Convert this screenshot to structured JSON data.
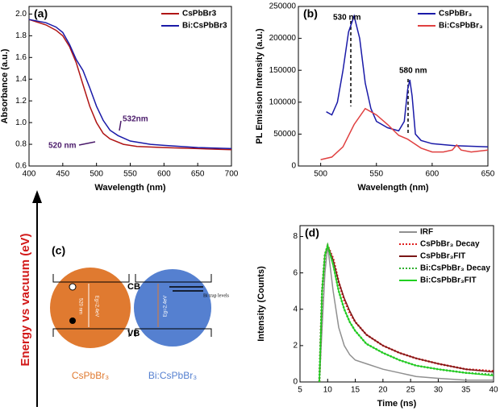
{
  "chart_data": [
    {
      "type": "line",
      "panel_label": "(a)",
      "x_label": "Wavelength (nm)",
      "y_label": "Absorbance (a.u.)",
      "xlim": [
        400,
        700
      ],
      "ylim": [
        0.6,
        2.07
      ],
      "xticks": [
        400,
        450,
        500,
        550,
        600,
        650,
        700
      ],
      "yticks": [
        0.6,
        0.8,
        {
          "value": 1,
          "label": "1.0"
        },
        1.2,
        1.4,
        1.6,
        1.8,
        {
          "value": 2,
          "label": "2.0"
        }
      ],
      "legend": "upper right",
      "annotations": [
        "520 nm",
        "532nm"
      ],
      "series": [
        {
          "name": "CsPbBr3",
          "color": "#b01515",
          "linestyle": "solid",
          "x": [
            400,
            425,
            440,
            450,
            460,
            470,
            480,
            490,
            500,
            510,
            520,
            540,
            560,
            600,
            650,
            700
          ],
          "values": [
            1.95,
            1.9,
            1.85,
            1.8,
            1.7,
            1.55,
            1.35,
            1.15,
            1.0,
            0.9,
            0.85,
            0.8,
            0.78,
            0.77,
            0.76,
            0.75
          ]
        },
        {
          "name": "Bi:CsPbBr3",
          "color": "#1a1aa8",
          "linestyle": "solid",
          "x": [
            400,
            425,
            440,
            450,
            460,
            470,
            480,
            490,
            500,
            510,
            520,
            532,
            550,
            580,
            600,
            650,
            700
          ],
          "values": [
            1.95,
            1.92,
            1.88,
            1.83,
            1.72,
            1.58,
            1.48,
            1.32,
            1.15,
            1.02,
            0.93,
            0.88,
            0.83,
            0.8,
            0.79,
            0.77,
            0.76
          ]
        }
      ]
    },
    {
      "type": "line",
      "panel_label": "(b)",
      "x_label": "Wavelength (nm)",
      "y_label": "PL Emission Intensity (a.u.)",
      "xlim": [
        480,
        650
      ],
      "ylim": [
        0,
        250000
      ],
      "xticks": [
        500,
        550,
        600,
        650
      ],
      "yticks": [
        0,
        50000,
        100000,
        150000,
        200000,
        250000
      ],
      "legend": "upper right",
      "annotations": [
        "530 nm",
        "580 nm"
      ],
      "series": [
        {
          "name": "CsPbBr₃",
          "color": "#1a1aa8",
          "linestyle": "solid",
          "x": [
            505,
            510,
            515,
            520,
            525,
            530,
            535,
            540,
            545,
            550,
            560,
            570,
            575,
            578,
            580,
            582,
            585,
            590,
            600,
            620,
            650
          ],
          "values": [
            85000,
            80000,
            100000,
            150000,
            210000,
            235000,
            200000,
            130000,
            90000,
            70000,
            60000,
            55000,
            70000,
            120000,
            135000,
            110000,
            50000,
            40000,
            35000,
            32000,
            30000
          ]
        },
        {
          "name": "Bi:CsPbBr₃",
          "color": "#e04040",
          "linestyle": "solid",
          "x": [
            500,
            510,
            520,
            530,
            540,
            550,
            560,
            570,
            578,
            590,
            600,
            610,
            618,
            622,
            626,
            635,
            650
          ],
          "values": [
            10000,
            14000,
            30000,
            65000,
            90000,
            80000,
            65000,
            48000,
            42000,
            28000,
            22000,
            22000,
            25000,
            33000,
            25000,
            22000,
            25000
          ]
        }
      ]
    },
    {
      "type": "line",
      "panel_label": "(d)",
      "x_label": "Time (ns)",
      "y_label": "Intensity (Counts)",
      "xlim": [
        5,
        40
      ],
      "ylim": [
        0,
        8.6
      ],
      "xticks": [
        5,
        10,
        15,
        20,
        25,
        30,
        35,
        40
      ],
      "yticks": [
        0,
        2,
        4,
        6,
        8
      ],
      "legend": "upper right",
      "annotations": [],
      "series": [
        {
          "name": "IRF",
          "color": "#909090",
          "linestyle": "solid",
          "x": [
            8.5,
            9,
            9.5,
            10,
            11,
            12,
            13,
            14,
            15,
            17,
            20,
            23,
            26,
            30,
            35,
            40
          ],
          "values": [
            0,
            3,
            6,
            7.5,
            5,
            3,
            2,
            1.5,
            1.2,
            1,
            0.7,
            0.5,
            0.3,
            0.2,
            0.1,
            0.1
          ]
        },
        {
          "name": "CsPbBr₃ Decay",
          "color": "#e02020",
          "linestyle": "dotted",
          "x": [
            8.5,
            9,
            9.5,
            10,
            11,
            12,
            13,
            14,
            15,
            17,
            20,
            23,
            26,
            30,
            35,
            40
          ],
          "values": [
            0,
            5,
            7,
            7.5,
            6.8,
            5.5,
            4.5,
            3.8,
            3.3,
            2.6,
            2,
            1.6,
            1.3,
            1,
            0.7,
            0.6
          ]
        },
        {
          "name": "CsPbBr₃FIT",
          "color": "#7a1515",
          "linestyle": "solid",
          "x": [
            8.5,
            9,
            9.5,
            10,
            11,
            12,
            13,
            14,
            15,
            17,
            20,
            23,
            26,
            30,
            35,
            40
          ],
          "values": [
            0,
            5,
            7,
            7.5,
            6.7,
            5.5,
            4.6,
            3.9,
            3.3,
            2.6,
            2,
            1.6,
            1.3,
            1,
            0.7,
            0.55
          ]
        },
        {
          "name": "Bi:CsPbBr₃ Decay",
          "color": "#30b030",
          "linestyle": "dotted",
          "x": [
            8.5,
            9,
            9.5,
            10,
            11,
            12,
            13,
            14,
            15,
            17,
            20,
            23,
            26,
            30,
            35,
            40
          ],
          "values": [
            0,
            5,
            7,
            7.5,
            6.5,
            5,
            4,
            3.3,
            2.8,
            2.1,
            1.6,
            1.2,
            0.9,
            0.7,
            0.5,
            0.4
          ]
        },
        {
          "name": "Bi:CsPbBr₃FIT",
          "color": "#20d020",
          "linestyle": "solid",
          "x": [
            8.5,
            9,
            9.5,
            10,
            11,
            12,
            13,
            14,
            15,
            17,
            20,
            23,
            26,
            30,
            35,
            40
          ],
          "values": [
            0,
            5,
            7,
            7.5,
            6.4,
            5,
            4,
            3.3,
            2.8,
            2.1,
            1.6,
            1.2,
            0.9,
            0.7,
            0.5,
            0.35
          ]
        }
      ]
    }
  ],
  "diagram": {
    "panel_label": "(c)",
    "axis_label": "Energy vs vacuum (eV)",
    "cb": "CB",
    "vb": "VB",
    "left_gap": "520 nm",
    "left_eg": "Eg=2.4eV",
    "right_eg": "Eg=2.4eV",
    "trap": "Bi trap levels",
    "left_name": "CsPbBr₃",
    "right_name": "Bi:CsPbBr₃"
  }
}
